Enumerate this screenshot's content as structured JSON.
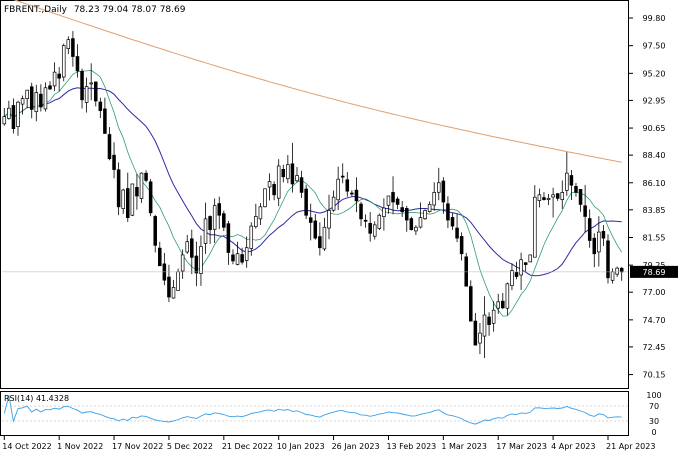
{
  "chart_data": {
    "type": "candlestick",
    "title": "FBRENT.,Daily",
    "ohlc_label": "78.23 79.04 78.07 78.69",
    "last_price": 78.69,
    "y_ticks": [
      70.15,
      72.45,
      74.7,
      77.0,
      79.25,
      81.55,
      83.85,
      86.1,
      88.4,
      90.65,
      92.95,
      95.2,
      97.5,
      99.8
    ],
    "ylim": [
      69.2,
      100.8
    ],
    "x_ticks": [
      {
        "label": "14 Oct 2022",
        "idx": 0
      },
      {
        "label": "1 Nov 2022",
        "idx": 12
      },
      {
        "label": "17 Nov 2022",
        "idx": 24
      },
      {
        "label": "5 Dec 2022",
        "idx": 36
      },
      {
        "label": "21 Dec 2022",
        "idx": 48
      },
      {
        "label": "10 Jan 2023",
        "idx": 60
      },
      {
        "label": "26 Jan 2023",
        "idx": 72
      },
      {
        "label": "13 Feb 2023",
        "idx": 84
      },
      {
        "label": "1 Mar 2023",
        "idx": 96
      },
      {
        "label": "17 Mar 2023",
        "idx": 108
      },
      {
        "label": "4 Apr 2023",
        "idx": 120
      },
      {
        "label": "21 Apr 2023",
        "idx": 132
      }
    ],
    "closes": [
      91.6,
      92.3,
      90.6,
      92.8,
      93.1,
      93.8,
      92.2,
      93.6,
      92.4,
      94.0,
      93.9,
      95.3,
      94.8,
      97.5,
      98.0,
      96.6,
      95.4,
      93.0,
      94.1,
      94.4,
      92.9,
      92.1,
      90.2,
      88.1,
      87.2,
      84.1,
      85.5,
      83.2,
      86.0,
      85.0,
      86.9,
      86.3,
      83.6,
      80.9,
      79.2,
      78.0,
      76.6,
      77.4,
      78.7,
      80.1,
      81.2,
      79.9,
      78.6,
      80.8,
      83.1,
      82.2,
      84.2,
      83.4,
      82.4,
      80.3,
      79.6,
      80.2,
      79.5,
      80.7,
      82.5,
      83.3,
      84.1,
      85.6,
      86.2,
      85.1,
      87.5,
      86.6,
      87.6,
      86.0,
      86.7,
      85.3,
      83.4,
      82.8,
      81.5,
      80.7,
      82.4,
      83.8,
      84.9,
      86.4,
      86.6,
      85.4,
      85.2,
      84.6,
      83.1,
      82.9,
      81.9,
      82.6,
      83.4,
      84.0,
      85.0,
      84.5,
      84.3,
      83.7,
      83.0,
      82.2,
      82.4,
      83.2,
      83.8,
      84.3,
      85.3,
      86.1,
      84.5,
      83.0,
      82.5,
      81.5,
      80.2,
      77.5,
      74.6,
      72.6,
      73.6,
      75.1,
      74.3,
      75.5,
      76.2,
      75.7,
      77.7,
      78.8,
      78.3,
      79.7,
      79.3,
      80.1,
      84.9,
      85.1,
      84.7,
      84.8,
      85.1,
      84.8,
      85.3,
      86.9,
      85.9,
      85.3,
      84.3,
      83.3,
      81.3,
      80.2,
      82.0,
      81.5,
      78.2,
      78.7,
      79.0,
      78.69
    ],
    "series": [
      {
        "color": "#8a6cd8",
        "kind": "ma_long"
      },
      {
        "color": "#2d2aa8",
        "kind": "ma_mid"
      },
      {
        "color": "#2e9e6e",
        "kind": "ma_short"
      }
    ],
    "rsi": {
      "label": "RSI(14) 41.4328",
      "levels": [
        30,
        70
      ],
      "ticks": [
        100,
        70,
        30,
        0
      ],
      "color": "#3aa0e8"
    }
  }
}
